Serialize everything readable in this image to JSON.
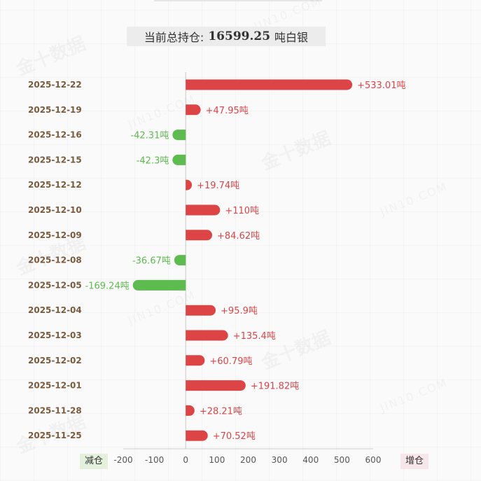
{
  "header": {
    "label": "当前总持仓:",
    "value": "16599.25",
    "unit": "吨白银"
  },
  "legend": {
    "decrease": "减仓",
    "increase": "增仓"
  },
  "watermark": {
    "cn": "金十数据",
    "en": "JIN10.COM"
  },
  "colors": {
    "increase": "#dc4446",
    "decrease": "#5dbb4f",
    "date_text": "#7a5a3c",
    "axis_text": "#555555"
  },
  "chart_data": {
    "type": "bar",
    "orientation": "horizontal",
    "title": "",
    "unit": "吨",
    "categories": [
      "2025-12-22",
      "2025-12-19",
      "2025-12-16",
      "2025-12-15",
      "2025-12-12",
      "2025-12-10",
      "2025-12-09",
      "2025-12-08",
      "2025-12-05",
      "2025-12-04",
      "2025-12-03",
      "2025-12-02",
      "2025-12-01",
      "2025-11-28",
      "2025-11-25"
    ],
    "values": [
      533.01,
      47.95,
      -42.31,
      -42.3,
      19.74,
      110,
      84.62,
      -36.67,
      -169.24,
      95.9,
      135.4,
      60.79,
      191.82,
      28.21,
      70.52
    ],
    "value_labels": [
      "+533.01吨",
      "+47.95吨",
      "-42.31吨",
      "-42.3吨",
      "+19.74吨",
      "+110吨",
      "+84.62吨",
      "-36.67吨",
      "-169.24吨",
      "+95.9吨",
      "+135.4吨",
      "+60.79吨",
      "+191.82吨",
      "+28.21吨",
      "+70.52吨"
    ],
    "xlim": [
      -200,
      600
    ],
    "xticks": [
      -200,
      -100,
      0,
      100,
      200,
      300,
      400,
      500,
      600
    ],
    "xtick_labels": [
      "-200",
      "-100",
      "0",
      "100",
      "200",
      "300",
      "400",
      "500",
      "600"
    ],
    "grid": false
  }
}
